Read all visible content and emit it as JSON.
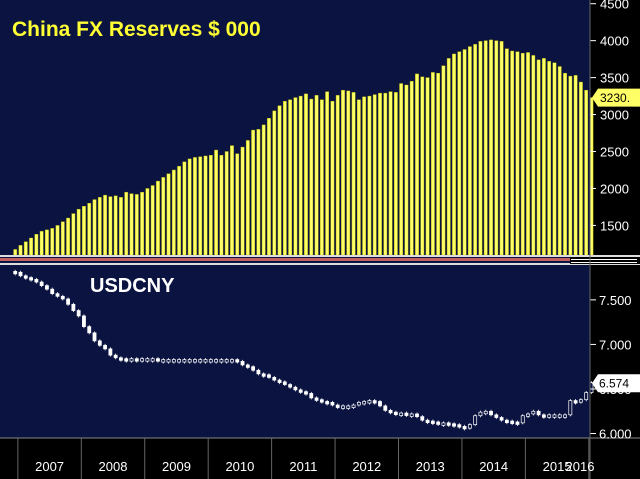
{
  "colors": {
    "background": "#0b1440",
    "bars": "#ffff66",
    "bar_edge": "#b8b800",
    "candles": "#ffffff",
    "axis_panel": "#000000",
    "separator": "#c06060"
  },
  "chart_data": [
    {
      "type": "bar",
      "title": "China FX Reserves $ 000",
      "ylim": [
        1100,
        4550
      ],
      "yticks": [
        "1500",
        "2000",
        "2500",
        "3000",
        "3500",
        "4000",
        "4500"
      ],
      "last_value_label": "3230.",
      "x": [
        "2006-12",
        "2007-01",
        "2007-02",
        "2007-03",
        "2007-04",
        "2007-05",
        "2007-06",
        "2007-07",
        "2007-08",
        "2007-09",
        "2007-10",
        "2007-11",
        "2007-12",
        "2008-01",
        "2008-02",
        "2008-03",
        "2008-04",
        "2008-05",
        "2008-06",
        "2008-07",
        "2008-08",
        "2008-09",
        "2008-10",
        "2008-11",
        "2008-12",
        "2009-01",
        "2009-02",
        "2009-03",
        "2009-04",
        "2009-05",
        "2009-06",
        "2009-07",
        "2009-08",
        "2009-09",
        "2009-10",
        "2009-11",
        "2009-12",
        "2010-01",
        "2010-02",
        "2010-03",
        "2010-04",
        "2010-05",
        "2010-06",
        "2010-07",
        "2010-08",
        "2010-09",
        "2010-10",
        "2010-11",
        "2010-12",
        "2011-01",
        "2011-02",
        "2011-03",
        "2011-04",
        "2011-05",
        "2011-06",
        "2011-07",
        "2011-08",
        "2011-09",
        "2011-10",
        "2011-11",
        "2011-12",
        "2012-01",
        "2012-02",
        "2012-03",
        "2012-04",
        "2012-05",
        "2012-06",
        "2012-07",
        "2012-08",
        "2012-09",
        "2012-10",
        "2012-11",
        "2012-12",
        "2013-01",
        "2013-02",
        "2013-03",
        "2013-04",
        "2013-05",
        "2013-06",
        "2013-07",
        "2013-08",
        "2013-09",
        "2013-10",
        "2013-11",
        "2013-12",
        "2014-01",
        "2014-02",
        "2014-03",
        "2014-04",
        "2014-05",
        "2014-06",
        "2014-07",
        "2014-08",
        "2014-09",
        "2014-10",
        "2014-11",
        "2014-12",
        "2015-01",
        "2015-02",
        "2015-03",
        "2015-04",
        "2015-05",
        "2015-06",
        "2015-07",
        "2015-08",
        "2015-09",
        "2015-10",
        "2015-11",
        "2015-12",
        "2016-01"
      ],
      "values": [
        1175,
        1230,
        1280,
        1330,
        1380,
        1420,
        1440,
        1460,
        1500,
        1550,
        1600,
        1660,
        1720,
        1760,
        1800,
        1850,
        1880,
        1910,
        1890,
        1900,
        1880,
        1950,
        1930,
        1920,
        1950,
        2000,
        2040,
        2100,
        2150,
        2200,
        2250,
        2300,
        2360,
        2400,
        2420,
        2430,
        2440,
        2450,
        2520,
        2450,
        2500,
        2580,
        2470,
        2560,
        2650,
        2790,
        2800,
        2860,
        2950,
        3050,
        3120,
        3180,
        3200,
        3230,
        3250,
        3280,
        3210,
        3260,
        3200,
        3310,
        3180,
        3260,
        3330,
        3320,
        3300,
        3200,
        3240,
        3250,
        3270,
        3290,
        3290,
        3310,
        3300,
        3420,
        3400,
        3450,
        3550,
        3510,
        3500,
        3570,
        3560,
        3660,
        3760,
        3820,
        3850,
        3880,
        3920,
        3950,
        3990,
        4000,
        4010,
        4000,
        3990,
        3890,
        3860,
        3850,
        3830,
        3840,
        3800,
        3740,
        3760,
        3720,
        3700,
        3650,
        3560,
        3520,
        3530,
        3440,
        3330,
        3230
      ]
    },
    {
      "type": "candlestick",
      "title": "USDCNY",
      "ylim": [
        5.95,
        7.88
      ],
      "yticks": [
        "6.000",
        "6.500",
        "7.000",
        "7.500"
      ],
      "last_value_label": "6.574",
      "x": [
        "2006-12",
        "2007-01",
        "2007-02",
        "2007-03",
        "2007-04",
        "2007-05",
        "2007-06",
        "2007-07",
        "2007-08",
        "2007-09",
        "2007-10",
        "2007-11",
        "2007-12",
        "2008-01",
        "2008-02",
        "2008-03",
        "2008-04",
        "2008-05",
        "2008-06",
        "2008-07",
        "2008-08",
        "2008-09",
        "2008-10",
        "2008-11",
        "2008-12",
        "2009-01",
        "2009-02",
        "2009-03",
        "2009-04",
        "2009-05",
        "2009-06",
        "2009-07",
        "2009-08",
        "2009-09",
        "2009-10",
        "2009-11",
        "2009-12",
        "2010-01",
        "2010-02",
        "2010-03",
        "2010-04",
        "2010-05",
        "2010-06",
        "2010-07",
        "2010-08",
        "2010-09",
        "2010-10",
        "2010-11",
        "2010-12",
        "2011-01",
        "2011-02",
        "2011-03",
        "2011-04",
        "2011-05",
        "2011-06",
        "2011-07",
        "2011-08",
        "2011-09",
        "2011-10",
        "2011-11",
        "2011-12",
        "2012-01",
        "2012-02",
        "2012-03",
        "2012-04",
        "2012-05",
        "2012-06",
        "2012-07",
        "2012-08",
        "2012-09",
        "2012-10",
        "2012-11",
        "2012-12",
        "2013-01",
        "2013-02",
        "2013-03",
        "2013-04",
        "2013-05",
        "2013-06",
        "2013-07",
        "2013-08",
        "2013-09",
        "2013-10",
        "2013-11",
        "2013-12",
        "2014-01",
        "2014-02",
        "2014-03",
        "2014-04",
        "2014-05",
        "2014-06",
        "2014-07",
        "2014-08",
        "2014-09",
        "2014-10",
        "2014-11",
        "2014-12",
        "2015-01",
        "2015-02",
        "2015-03",
        "2015-04",
        "2015-05",
        "2015-06",
        "2015-07",
        "2015-08",
        "2015-09",
        "2015-10",
        "2015-11",
        "2015-12",
        "2016-01"
      ],
      "values": [
        7.81,
        7.77,
        7.75,
        7.73,
        7.7,
        7.66,
        7.62,
        7.57,
        7.54,
        7.51,
        7.45,
        7.38,
        7.32,
        7.2,
        7.13,
        7.04,
        6.99,
        6.95,
        6.88,
        6.85,
        6.84,
        6.83,
        6.84,
        6.83,
        6.84,
        6.84,
        6.84,
        6.83,
        6.83,
        6.83,
        6.83,
        6.83,
        6.83,
        6.83,
        6.83,
        6.83,
        6.83,
        6.83,
        6.83,
        6.83,
        6.83,
        6.83,
        6.81,
        6.77,
        6.75,
        6.71,
        6.67,
        6.66,
        6.63,
        6.6,
        6.58,
        6.55,
        6.52,
        6.49,
        6.47,
        6.45,
        6.4,
        6.38,
        6.36,
        6.35,
        6.32,
        6.3,
        6.31,
        6.31,
        6.32,
        6.35,
        6.36,
        6.37,
        6.36,
        6.31,
        6.26,
        6.24,
        6.23,
        6.23,
        6.22,
        6.22,
        6.19,
        6.15,
        6.14,
        6.13,
        6.12,
        6.12,
        6.11,
        6.1,
        6.08,
        6.06,
        6.1,
        6.2,
        6.24,
        6.25,
        6.21,
        6.18,
        6.15,
        6.14,
        6.13,
        6.12,
        6.2,
        6.22,
        6.25,
        6.21,
        6.2,
        6.21,
        6.21,
        6.21,
        6.21,
        6.37,
        6.36,
        6.38,
        6.46,
        6.57
      ]
    }
  ],
  "x_axis": {
    "labels": [
      "2007",
      "2008",
      "2009",
      "2010",
      "2011",
      "2012",
      "2013",
      "2014",
      "2015",
      "2016"
    ]
  }
}
